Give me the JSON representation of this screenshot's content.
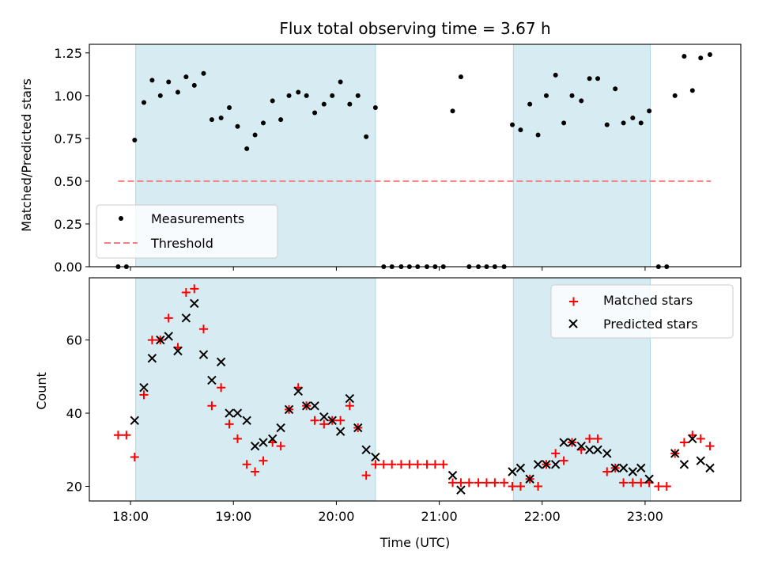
{
  "chart_data": [
    {
      "type": "scatter",
      "title": "Flux total observing time = 3.67 h",
      "ylabel": "Matched/Predicted stars",
      "xlabel": "",
      "xlim": [
        17.6,
        23.93
      ],
      "ylim": [
        0,
        1.3
      ],
      "yticks": [
        0.0,
        0.25,
        0.5,
        0.75,
        1.0,
        1.25
      ],
      "ytick_labels": [
        "0.00",
        "0.25",
        "0.50",
        "0.75",
        "1.00",
        "1.25"
      ],
      "xticks": [
        18,
        19,
        20,
        21,
        22,
        23
      ],
      "grid": false,
      "legend_position": "lower-left",
      "shaded_intervals": [
        [
          18.05,
          20.38
        ],
        [
          21.72,
          23.05
        ]
      ],
      "shade_color": "#add8e6",
      "threshold": {
        "name": "Threshold",
        "value": 0.5,
        "x_range": [
          17.88,
          23.64
        ],
        "color": "#f08080"
      },
      "series": [
        {
          "name": "Measurements",
          "color": "#000000",
          "x": [
            17.88,
            17.96,
            18.04,
            18.13,
            18.21,
            18.29,
            18.37,
            18.46,
            18.54,
            18.62,
            18.71,
            18.79,
            18.88,
            18.96,
            19.04,
            19.13,
            19.21,
            19.29,
            19.38,
            19.46,
            19.54,
            19.63,
            19.71,
            19.79,
            19.88,
            19.96,
            20.04,
            20.13,
            20.21,
            20.29,
            20.38,
            20.46,
            20.54,
            20.63,
            20.71,
            20.79,
            20.88,
            20.96,
            21.04,
            21.13,
            21.21,
            21.29,
            21.38,
            21.46,
            21.54,
            21.63,
            21.71,
            21.79,
            21.88,
            21.96,
            22.04,
            22.13,
            22.21,
            22.29,
            22.38,
            22.46,
            22.54,
            22.63,
            22.71,
            22.79,
            22.88,
            22.96,
            23.04,
            23.13,
            23.21,
            23.29,
            23.38,
            23.46,
            23.54,
            23.63
          ],
          "y": [
            0.0,
            0.0,
            0.74,
            0.96,
            1.09,
            1.0,
            1.08,
            1.02,
            1.11,
            1.06,
            1.13,
            0.86,
            0.87,
            0.93,
            0.82,
            0.69,
            0.77,
            0.84,
            0.97,
            0.86,
            1.0,
            1.02,
            1.0,
            0.9,
            0.95,
            1.0,
            1.08,
            0.95,
            1.0,
            0.76,
            0.93,
            0.0,
            0.0,
            0.0,
            0.0,
            0.0,
            0.0,
            0.0,
            0.0,
            0.91,
            1.11,
            0.0,
            0.0,
            0.0,
            0.0,
            0.0,
            0.83,
            0.8,
            0.95,
            0.77,
            1.0,
            1.12,
            0.84,
            1.0,
            0.97,
            1.1,
            1.1,
            0.83,
            1.04,
            0.84,
            0.87,
            0.84,
            0.91,
            0.0,
            0.0,
            1.0,
            1.23,
            1.03,
            1.22,
            1.24
          ]
        }
      ]
    },
    {
      "type": "scatter",
      "title": "",
      "ylabel": "Count",
      "xlabel": "Time (UTC)",
      "xlim": [
        17.6,
        23.93
      ],
      "ylim": [
        16,
        77
      ],
      "yticks": [
        20,
        40,
        60
      ],
      "ytick_labels": [
        "20",
        "40",
        "60"
      ],
      "xticks": [
        18,
        19,
        20,
        21,
        22,
        23
      ],
      "xtick_labels": [
        "18:00",
        "19:00",
        "20:00",
        "21:00",
        "22:00",
        "23:00"
      ],
      "grid": false,
      "legend_position": "top-right",
      "shaded_intervals": [
        [
          18.05,
          20.38
        ],
        [
          21.72,
          23.05
        ]
      ],
      "shade_color": "#add8e6",
      "series": [
        {
          "name": "Matched stars",
          "color": "#ff0000",
          "marker": "plus",
          "x": [
            17.88,
            17.96,
            18.04,
            18.13,
            18.21,
            18.29,
            18.37,
            18.46,
            18.54,
            18.62,
            18.71,
            18.79,
            18.88,
            18.96,
            19.04,
            19.13,
            19.21,
            19.29,
            19.38,
            19.46,
            19.54,
            19.63,
            19.71,
            19.79,
            19.88,
            19.96,
            20.04,
            20.13,
            20.21,
            20.29,
            20.38,
            20.46,
            20.54,
            20.63,
            20.71,
            20.79,
            20.88,
            20.96,
            21.04,
            21.13,
            21.21,
            21.29,
            21.38,
            21.46,
            21.54,
            21.63,
            21.71,
            21.79,
            21.88,
            21.96,
            22.04,
            22.13,
            22.21,
            22.29,
            22.38,
            22.46,
            22.54,
            22.63,
            22.71,
            22.79,
            22.88,
            22.96,
            23.04,
            23.13,
            23.21,
            23.29,
            23.38,
            23.46,
            23.54,
            23.63
          ],
          "y": [
            34,
            34,
            28,
            45,
            60,
            60,
            66,
            58,
            73,
            74,
            63,
            42,
            47,
            37,
            33,
            26,
            24,
            27,
            32,
            31,
            41,
            47,
            42,
            38,
            37,
            38,
            38,
            42,
            36,
            23,
            26,
            26,
            26,
            26,
            26,
            26,
            26,
            26,
            26,
            21,
            21,
            21,
            21,
            21,
            21,
            21,
            20,
            20,
            22,
            20,
            26,
            29,
            27,
            32,
            30,
            33,
            33,
            24,
            25,
            21,
            21,
            21,
            21,
            20,
            20,
            29,
            32,
            34,
            33,
            31
          ]
        },
        {
          "name": "Predicted stars",
          "color": "#000000",
          "marker": "x",
          "x": [
            18.04,
            18.13,
            18.21,
            18.29,
            18.37,
            18.46,
            18.54,
            18.62,
            18.71,
            18.79,
            18.88,
            18.96,
            19.04,
            19.13,
            19.21,
            19.29,
            19.38,
            19.46,
            19.54,
            19.63,
            19.71,
            19.79,
            19.88,
            19.96,
            20.04,
            20.13,
            20.21,
            20.29,
            20.38,
            21.13,
            21.21,
            21.71,
            21.79,
            21.88,
            21.96,
            22.04,
            22.13,
            22.21,
            22.29,
            22.38,
            22.46,
            22.54,
            22.63,
            22.71,
            22.79,
            22.88,
            22.96,
            23.04,
            23.29,
            23.38,
            23.46,
            23.54,
            23.63
          ],
          "y": [
            38,
            47,
            55,
            60,
            61,
            57,
            66,
            70,
            56,
            49,
            54,
            40,
            40,
            38,
            31,
            32,
            33,
            36,
            41,
            46,
            42,
            42,
            39,
            38,
            35,
            44,
            36,
            30,
            28,
            23,
            19,
            24,
            25,
            22,
            26,
            26,
            26,
            32,
            32,
            31,
            30,
            30,
            29,
            25,
            25,
            24,
            25,
            22,
            29,
            26,
            33,
            27,
            25
          ]
        }
      ]
    }
  ]
}
